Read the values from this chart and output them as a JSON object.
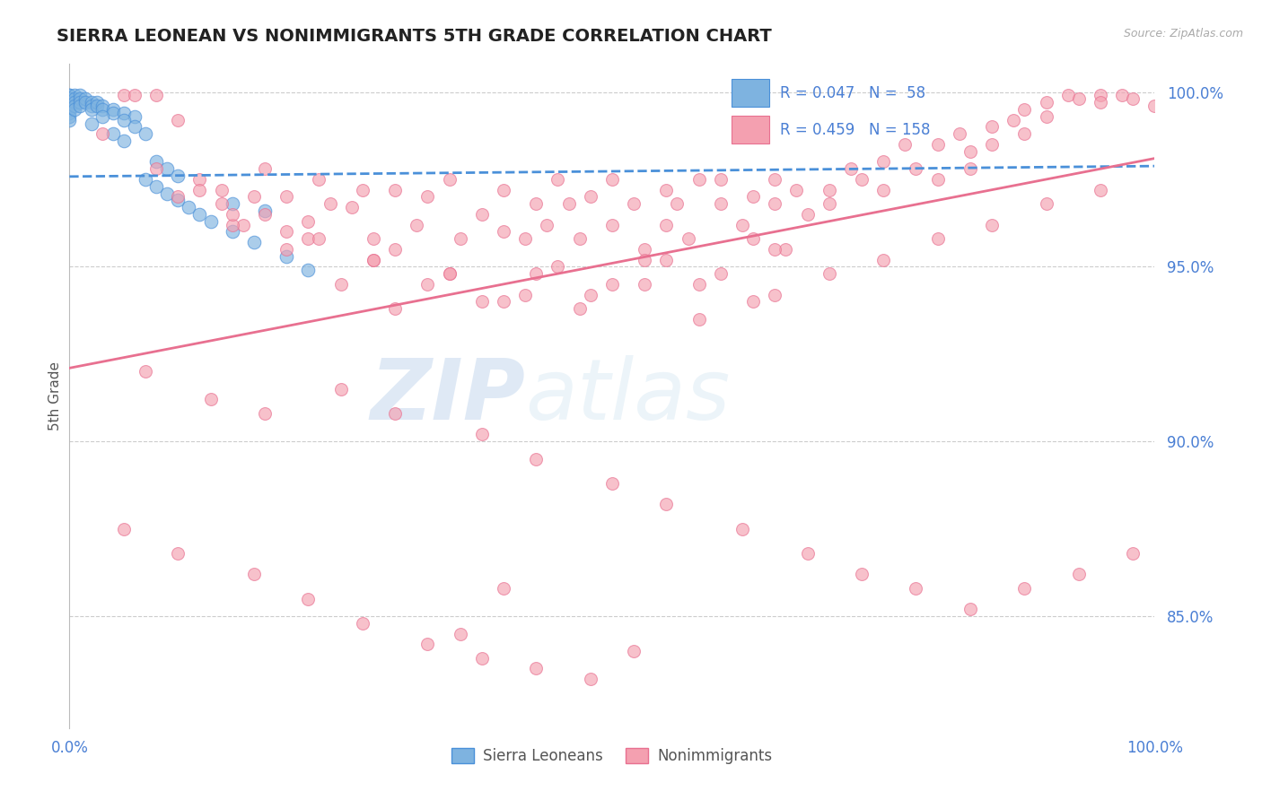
{
  "title": "SIERRA LEONEAN VS NONIMMIGRANTS 5TH GRADE CORRELATION CHART",
  "source": "Source: ZipAtlas.com",
  "ylabel": "5th Grade",
  "yticks": [
    0.85,
    0.9,
    0.95,
    1.0
  ],
  "ytick_labels": [
    "85.0%",
    "90.0%",
    "95.0%",
    "100.0%"
  ],
  "xmin": 0.0,
  "xmax": 1.0,
  "ymin": 0.818,
  "ymax": 1.008,
  "blue_R": 0.047,
  "blue_N": 58,
  "pink_R": 0.459,
  "pink_N": 158,
  "blue_color": "#7eb3e0",
  "pink_color": "#f4a0b0",
  "blue_line_color": "#4a90d9",
  "pink_line_color": "#e87090",
  "legend_label_blue": "Sierra Leoneans",
  "legend_label_pink": "Nonimmigrants",
  "watermark_zip": "ZIP",
  "watermark_atlas": "atlas",
  "blue_scatter_x": [
    0.0,
    0.0,
    0.0,
    0.0,
    0.0,
    0.0,
    0.0,
    0.0,
    0.0,
    0.0,
    0.0,
    0.0,
    0.005,
    0.005,
    0.005,
    0.005,
    0.005,
    0.01,
    0.01,
    0.01,
    0.01,
    0.015,
    0.015,
    0.02,
    0.02,
    0.02,
    0.025,
    0.025,
    0.03,
    0.03,
    0.04,
    0.04,
    0.05,
    0.06,
    0.07,
    0.08,
    0.09,
    0.1,
    0.11,
    0.12,
    0.13,
    0.15,
    0.17,
    0.2,
    0.22,
    0.08,
    0.09,
    0.1,
    0.04,
    0.05,
    0.15,
    0.18,
    0.05,
    0.06,
    0.07,
    0.03,
    0.02
  ],
  "blue_scatter_y": [
    0.999,
    0.999,
    0.998,
    0.998,
    0.997,
    0.997,
    0.996,
    0.996,
    0.995,
    0.994,
    0.993,
    0.992,
    0.999,
    0.998,
    0.997,
    0.996,
    0.995,
    0.999,
    0.998,
    0.997,
    0.996,
    0.998,
    0.997,
    0.997,
    0.996,
    0.995,
    0.997,
    0.996,
    0.996,
    0.995,
    0.995,
    0.994,
    0.994,
    0.993,
    0.975,
    0.973,
    0.971,
    0.969,
    0.967,
    0.965,
    0.963,
    0.96,
    0.957,
    0.953,
    0.949,
    0.98,
    0.978,
    0.976,
    0.988,
    0.986,
    0.968,
    0.966,
    0.992,
    0.99,
    0.988,
    0.993,
    0.991
  ],
  "pink_scatter_x": [
    0.03,
    0.05,
    0.06,
    0.08,
    0.1,
    0.12,
    0.14,
    0.14,
    0.16,
    0.17,
    0.18,
    0.2,
    0.22,
    0.23,
    0.24,
    0.26,
    0.27,
    0.28,
    0.3,
    0.3,
    0.32,
    0.33,
    0.35,
    0.36,
    0.38,
    0.4,
    0.4,
    0.42,
    0.43,
    0.44,
    0.45,
    0.46,
    0.47,
    0.48,
    0.5,
    0.5,
    0.52,
    0.53,
    0.55,
    0.55,
    0.56,
    0.57,
    0.58,
    0.6,
    0.6,
    0.62,
    0.63,
    0.63,
    0.65,
    0.65,
    0.66,
    0.67,
    0.68,
    0.7,
    0.7,
    0.72,
    0.73,
    0.75,
    0.75,
    0.77,
    0.78,
    0.8,
    0.8,
    0.82,
    0.83,
    0.83,
    0.85,
    0.85,
    0.87,
    0.88,
    0.88,
    0.9,
    0.9,
    0.92,
    0.93,
    0.95,
    0.95,
    0.97,
    0.98,
    1.0,
    0.2,
    0.25,
    0.3,
    0.35,
    0.4,
    0.45,
    0.5,
    0.55,
    0.6,
    0.65,
    0.15,
    0.22,
    0.28,
    0.33,
    0.38,
    0.43,
    0.48,
    0.53,
    0.58,
    0.63,
    0.1,
    0.15,
    0.2,
    0.08,
    0.12,
    0.18,
    0.23,
    0.28,
    0.35,
    0.42,
    0.47,
    0.53,
    0.58,
    0.65,
    0.7,
    0.75,
    0.8,
    0.85,
    0.9,
    0.95,
    0.07,
    0.13,
    0.18,
    0.25,
    0.3,
    0.38,
    0.43,
    0.5,
    0.55,
    0.62,
    0.68,
    0.73,
    0.78,
    0.83,
    0.88,
    0.93,
    0.98,
    0.05,
    0.1,
    0.17,
    0.22,
    0.27,
    0.33,
    0.38,
    0.43,
    0.48,
    0.4,
    0.36,
    0.52
  ],
  "pink_scatter_y": [
    0.988,
    0.999,
    0.999,
    0.999,
    0.992,
    0.975,
    0.968,
    0.972,
    0.962,
    0.97,
    0.978,
    0.97,
    0.963,
    0.975,
    0.968,
    0.967,
    0.972,
    0.958,
    0.972,
    0.955,
    0.962,
    0.97,
    0.975,
    0.958,
    0.965,
    0.96,
    0.972,
    0.958,
    0.968,
    0.962,
    0.975,
    0.968,
    0.958,
    0.97,
    0.975,
    0.962,
    0.968,
    0.955,
    0.962,
    0.972,
    0.968,
    0.958,
    0.975,
    0.968,
    0.975,
    0.962,
    0.97,
    0.958,
    0.975,
    0.968,
    0.955,
    0.972,
    0.965,
    0.972,
    0.968,
    0.978,
    0.975,
    0.98,
    0.972,
    0.985,
    0.978,
    0.985,
    0.975,
    0.988,
    0.983,
    0.978,
    0.99,
    0.985,
    0.992,
    0.995,
    0.988,
    0.997,
    0.993,
    0.999,
    0.998,
    0.999,
    0.997,
    0.999,
    0.998,
    0.996,
    0.955,
    0.945,
    0.938,
    0.948,
    0.94,
    0.95,
    0.945,
    0.952,
    0.948,
    0.955,
    0.962,
    0.958,
    0.952,
    0.945,
    0.94,
    0.948,
    0.942,
    0.952,
    0.945,
    0.94,
    0.97,
    0.965,
    0.96,
    0.978,
    0.972,
    0.965,
    0.958,
    0.952,
    0.948,
    0.942,
    0.938,
    0.945,
    0.935,
    0.942,
    0.948,
    0.952,
    0.958,
    0.962,
    0.968,
    0.972,
    0.92,
    0.912,
    0.908,
    0.915,
    0.908,
    0.902,
    0.895,
    0.888,
    0.882,
    0.875,
    0.868,
    0.862,
    0.858,
    0.852,
    0.858,
    0.862,
    0.868,
    0.875,
    0.868,
    0.862,
    0.855,
    0.848,
    0.842,
    0.838,
    0.835,
    0.832,
    0.858,
    0.845,
    0.84
  ],
  "blue_line_x": [
    0.0,
    1.0
  ],
  "blue_line_y": [
    0.9758,
    0.9788
  ],
  "pink_line_x": [
    0.0,
    1.0
  ],
  "pink_line_y": [
    0.921,
    0.981
  ]
}
